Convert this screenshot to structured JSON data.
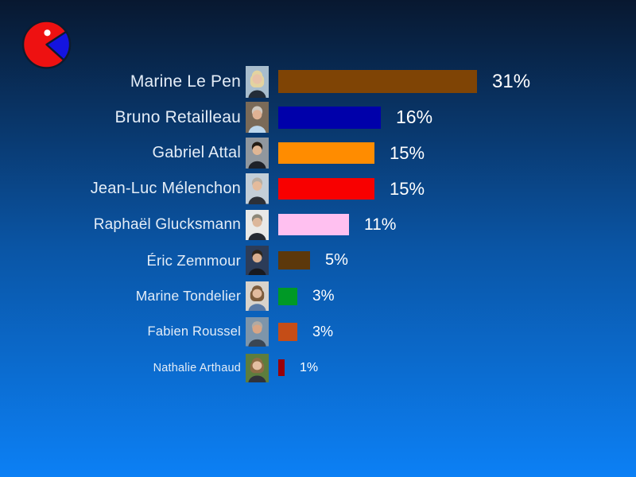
{
  "slide": {
    "background": {
      "top": "#081830",
      "mid": "#0a55a5",
      "bottom": "#0c80f5"
    }
  },
  "logo": {
    "description": "red pie-chart pacman logo with blue wedge and white eye",
    "body_color": "#ee1111",
    "wedge_color": "#1414e0",
    "eye_color": "#ffffff",
    "outline_color": "#0d1b2e"
  },
  "text_colors": {
    "name": "#e4edf7",
    "value": "#ffffff"
  },
  "chart_data": {
    "type": "bar",
    "orientation": "horizontal",
    "title": "",
    "xlabel": "",
    "ylabel": "",
    "unit": "%",
    "xlim": [
      0,
      34
    ],
    "grid": false,
    "legend": "none",
    "categories": [
      "Marine Le Pen",
      "Bruno Retailleau",
      "Gabriel Attal",
      "Jean-Luc Mélenchon",
      "Raphaël Glucksmann",
      "Éric Zemmour",
      "Marine Tondelier",
      "Fabien Roussel",
      "Nathalie Arthaud"
    ],
    "values": [
      31,
      16,
      15,
      15,
      11,
      5,
      3,
      3,
      1
    ],
    "value_labels": [
      "31%",
      "16%",
      "15%",
      "15%",
      "11%",
      "5%",
      "3%",
      "3%",
      "1%"
    ],
    "bar_colors": [
      "#7f4405",
      "#0000aa",
      "#ff8c00",
      "#f80000",
      "#ffc0f0",
      "#5c380b",
      "#009926",
      "#c54d17",
      "#99000a"
    ],
    "candidates": [
      {
        "name": "Marine Le Pen",
        "value": 31,
        "label": "31%",
        "bar_color": "#7f4405",
        "portrait": {
          "bg": "#a8bdcd",
          "hair": "#e3d3a0",
          "skin": "#e8c2a8",
          "top": "#232c38",
          "style": "long"
        }
      },
      {
        "name": "Bruno Retailleau",
        "value": 16,
        "label": "16%",
        "bar_color": "#0000aa",
        "portrait": {
          "bg": "#7a6a58",
          "hair": "#cfc9c0",
          "skin": "#dfb294",
          "top": "#bdd7ec",
          "style": "short"
        }
      },
      {
        "name": "Gabriel Attal",
        "value": 15,
        "label": "15%",
        "bar_color": "#ff8c00",
        "portrait": {
          "bg": "#90979e",
          "hair": "#241c14",
          "skin": "#e0b694",
          "top": "#1e2128",
          "style": "short"
        }
      },
      {
        "name": "Jean-Luc Mélenchon",
        "value": 15,
        "label": "15%",
        "bar_color": "#f80000",
        "portrait": {
          "bg": "#c3ced8",
          "hair": "#b5afa5",
          "skin": "#e4bb9c",
          "top": "#2c3038",
          "style": "short"
        }
      },
      {
        "name": "Raphaël Glucksmann",
        "value": 11,
        "label": "11%",
        "bar_color": "#ffc0f0",
        "portrait": {
          "bg": "#e9e9e7",
          "hair": "#8d8878",
          "skin": "#dcb79a",
          "top": "#262a32",
          "style": "short"
        }
      },
      {
        "name": "Éric Zemmour",
        "value": 5,
        "label": "5%",
        "bar_color": "#5c380b",
        "portrait": {
          "bg": "#2c3c58",
          "hair": "#2e261c",
          "skin": "#d8ae8e",
          "top": "#181a20",
          "style": "short"
        }
      },
      {
        "name": "Marine Tondelier",
        "value": 3,
        "label": "3%",
        "bar_color": "#009926",
        "portrait": {
          "bg": "#d9d3cb",
          "hair": "#7d5c3c",
          "skin": "#e2bb9e",
          "top": "#5a7aa6",
          "style": "long"
        }
      },
      {
        "name": "Fabien Roussel",
        "value": 3,
        "label": "3%",
        "bar_color": "#c54d17",
        "portrait": {
          "bg": "#7e95aa",
          "hair": "#b2aaa2",
          "skin": "#d9a584",
          "top": "#3a4654",
          "style": "short"
        }
      },
      {
        "name": "Nathalie Arthaud",
        "value": 1,
        "label": "1%",
        "bar_color": "#99000a",
        "portrait": {
          "bg": "#5d7d3e",
          "hair": "#8d6c44",
          "skin": "#e3bfa2",
          "top": "#30323a",
          "style": "long"
        }
      }
    ]
  }
}
